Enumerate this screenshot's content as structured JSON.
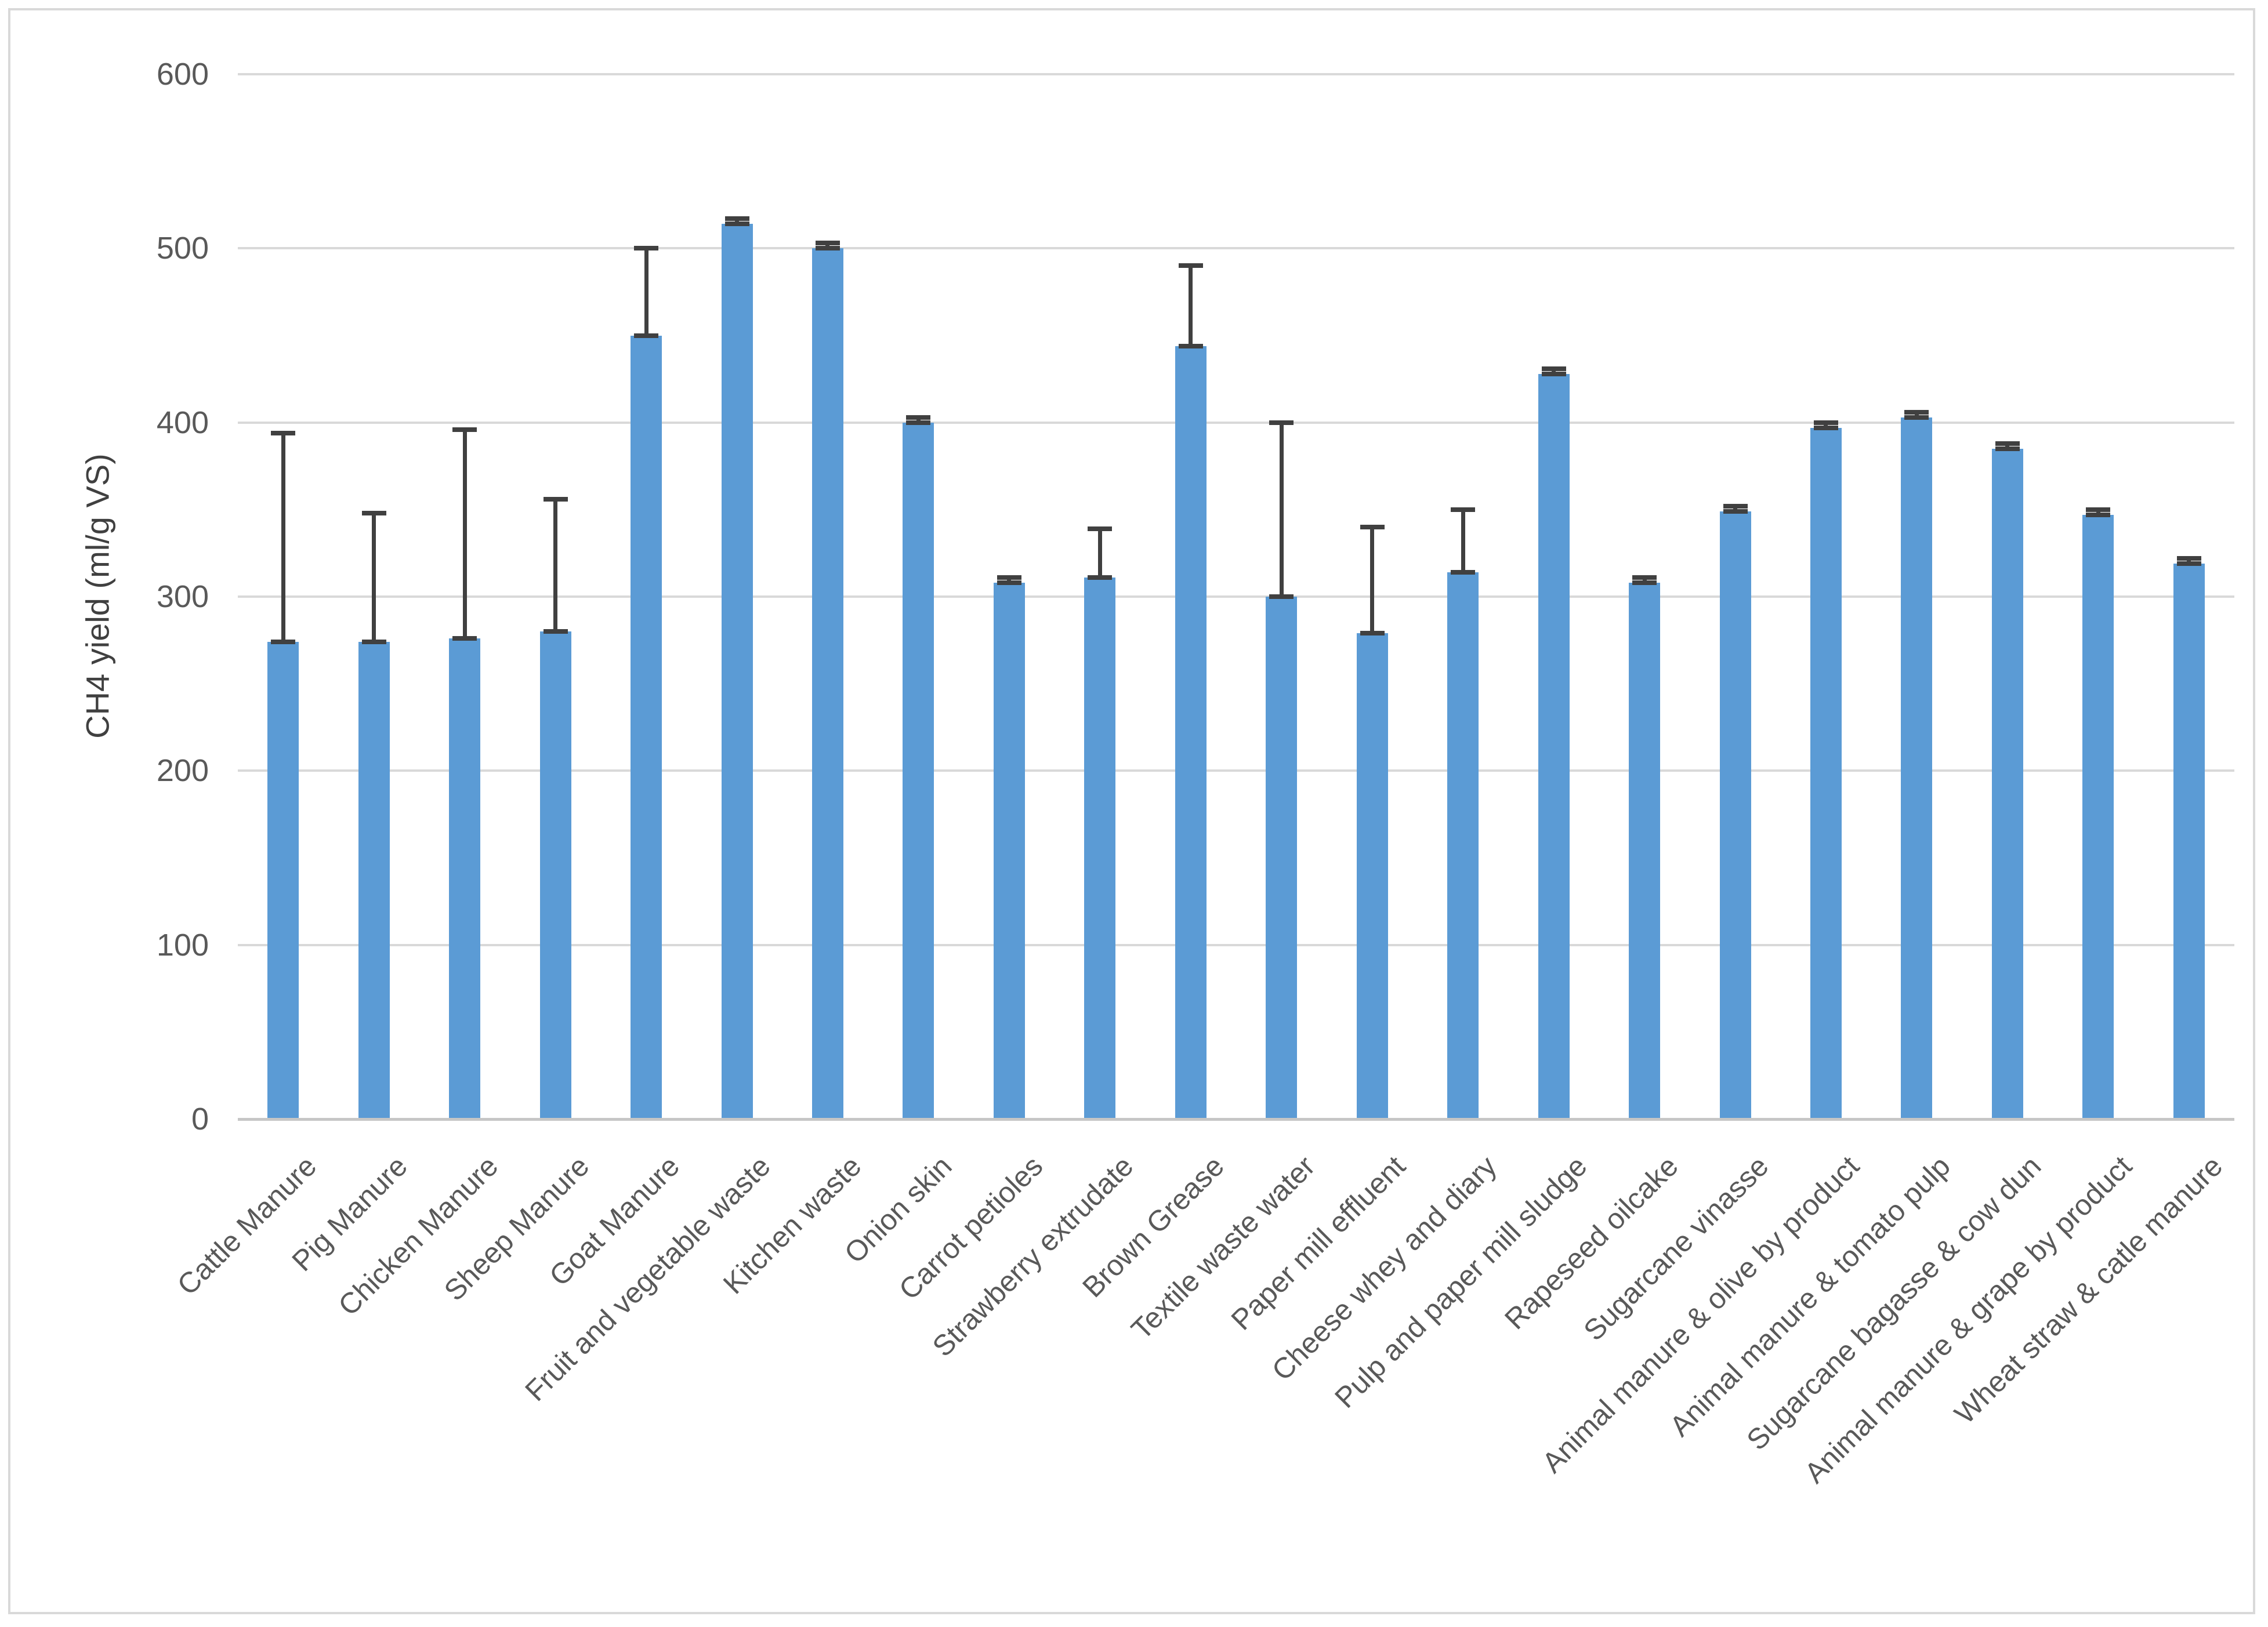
{
  "chart_data": {
    "type": "bar",
    "title": "",
    "xlabel": "",
    "ylabel": "CH4 yield (ml/g VS)",
    "ylim": [
      0,
      600
    ],
    "yticks": [
      0,
      100,
      200,
      300,
      400,
      500,
      600
    ],
    "grid": true,
    "legend": false,
    "categories": [
      "Cattle Manure",
      "Pig Manure",
      "Chicken Manure",
      "Sheep Manure",
      "Goat Manure",
      "Fruit and vegetable waste",
      "Kitchen waste",
      "Onion skin",
      "Carrot petioles",
      "Strawberry extrudate",
      "Brown Grease",
      "Textile waste water",
      "Paper mill effluent",
      "Cheese whey and diary",
      "Pulp and paper mill sludge",
      "Rapeseed oilcake",
      "Sugarcane vinasse",
      "Animal manure & olive by product",
      "Animal manure & tomato pulp",
      "Sugarcane bagasse & cow dun",
      "Animal manure & grape by product",
      "Wheat straw & catle manure"
    ],
    "series": [
      {
        "name": "CH4 yield",
        "values": [
          274,
          274,
          276,
          280,
          450,
          514,
          500,
          400,
          308,
          311,
          444,
          300,
          279,
          314,
          428,
          308,
          349,
          397,
          403,
          385,
          347,
          319
        ],
        "errors_plus": [
          120,
          74,
          120,
          76,
          50,
          3,
          3,
          3,
          3,
          28,
          46,
          100,
          61,
          36,
          3,
          3,
          3,
          3,
          3,
          3,
          3,
          3
        ]
      }
    ],
    "colors": {
      "bar": "#5B9BD5",
      "error": "#404040",
      "gridline": "#D9D9D9",
      "axis_line": "#C6C6C6",
      "text": "#595959",
      "frame_border": "#D9D9D9",
      "background": "#FFFFFF"
    }
  }
}
